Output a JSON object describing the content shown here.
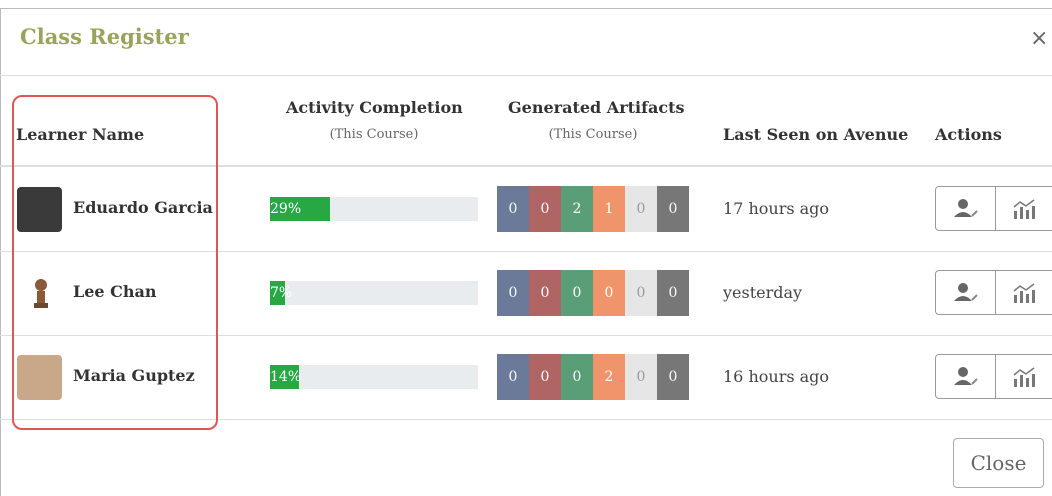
{
  "header": {
    "title": "Class Register",
    "close_icon": "×"
  },
  "table": {
    "columns": [
      {
        "title": "Learner Name"
      },
      {
        "title": "Activity Completion",
        "subtitle": "(This Course)"
      },
      {
        "title": "Generated Artifacts",
        "subtitle": "(This Course)"
      },
      {
        "title": "Last Seen on Avenue"
      },
      {
        "title": "Actions"
      }
    ],
    "rows": [
      {
        "name": "Eduardo Garcia",
        "completion": {
          "value": 29,
          "label": "29%"
        },
        "artifacts": [
          0,
          0,
          2,
          1,
          0,
          0
        ],
        "last_seen": "17 hours ago"
      },
      {
        "name": "Lee Chan",
        "completion": {
          "value": 7,
          "label": "7%"
        },
        "artifacts": [
          0,
          0,
          0,
          0,
          0,
          0
        ],
        "last_seen": "yesterday"
      },
      {
        "name": "Maria Guptez",
        "completion": {
          "value": 14,
          "label": "14%"
        },
        "artifacts": [
          0,
          0,
          0,
          2,
          0,
          0
        ],
        "last_seen": "16 hours ago"
      }
    ]
  },
  "footer": {
    "close_button": "Close"
  }
}
